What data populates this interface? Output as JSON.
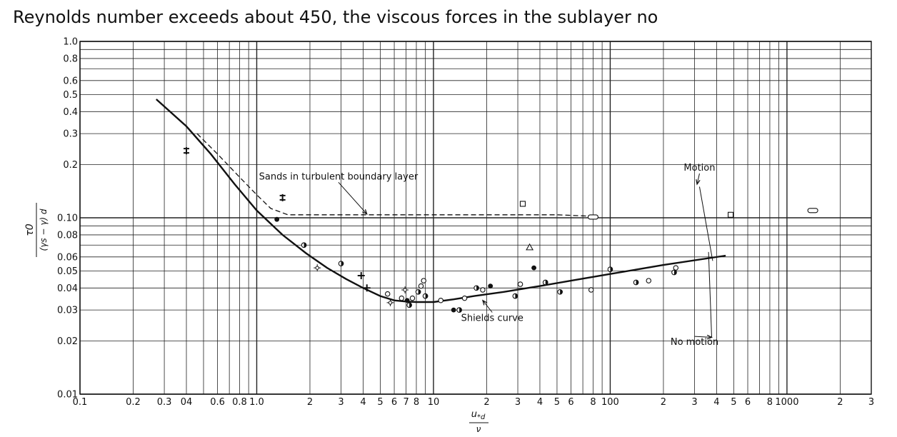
{
  "caption": "Reynolds number exceeds about 450, the viscous forces in the sublayer no",
  "chart_data": {
    "type": "line",
    "x_scale": "log",
    "y_scale": "log",
    "xlim": [
      0.1,
      3000
    ],
    "ylim": [
      0.01,
      1.0
    ],
    "grid": true,
    "x_tick_labels": [
      {
        "v": 0.1,
        "t": "0.1"
      },
      {
        "v": 0.2,
        "t": "0.2"
      },
      {
        "v": 0.3,
        "t": "0.3"
      },
      {
        "v": 0.4,
        "t": "04"
      },
      {
        "v": 0.6,
        "t": "0.6"
      },
      {
        "v": 0.8,
        "t": "0.8"
      },
      {
        "v": 1.0,
        "t": "1.0"
      },
      {
        "v": 2,
        "t": "2"
      },
      {
        "v": 3,
        "t": "3"
      },
      {
        "v": 4,
        "t": "4"
      },
      {
        "v": 5,
        "t": "5"
      },
      {
        "v": 6,
        "t": "6"
      },
      {
        "v": 7,
        "t": "7"
      },
      {
        "v": 8,
        "t": "8"
      },
      {
        "v": 10,
        "t": "10"
      },
      {
        "v": 20,
        "t": "2"
      },
      {
        "v": 30,
        "t": "3"
      },
      {
        "v": 40,
        "t": "4"
      },
      {
        "v": 50,
        "t": "5"
      },
      {
        "v": 60,
        "t": "6"
      },
      {
        "v": 80,
        "t": "8"
      },
      {
        "v": 100,
        "t": "100"
      },
      {
        "v": 200,
        "t": "2"
      },
      {
        "v": 300,
        "t": "3"
      },
      {
        "v": 400,
        "t": "4"
      },
      {
        "v": 500,
        "t": "5"
      },
      {
        "v": 600,
        "t": "6"
      },
      {
        "v": 800,
        "t": "8"
      },
      {
        "v": 1000,
        "t": "1000"
      },
      {
        "v": 2000,
        "t": "2"
      },
      {
        "v": 3000,
        "t": "3"
      }
    ],
    "y_tick_labels": [
      {
        "v": 1.0,
        "t": "1.0"
      },
      {
        "v": 0.8,
        "t": "0.8"
      },
      {
        "v": 0.6,
        "t": "0.6"
      },
      {
        "v": 0.5,
        "t": "0.5"
      },
      {
        "v": 0.4,
        "t": "0.4"
      },
      {
        "v": 0.3,
        "t": "0.3"
      },
      {
        "v": 0.2,
        "t": "0.2"
      },
      {
        "v": 0.1,
        "t": "0.10"
      },
      {
        "v": 0.08,
        "t": "0.08"
      },
      {
        "v": 0.06,
        "t": "0.06"
      },
      {
        "v": 0.05,
        "t": "0.05"
      },
      {
        "v": 0.04,
        "t": "0.04"
      },
      {
        "v": 0.03,
        "t": "0.03"
      },
      {
        "v": 0.02,
        "t": "0.02"
      },
      {
        "v": 0.01,
        "t": "0.01"
      }
    ],
    "xlabel": "u*d / ν",
    "ylabel": "τ0 / (γs − γ) d",
    "series": [
      {
        "name": "Shields curve",
        "style": "solid",
        "x": [
          0.27,
          0.4,
          0.55,
          0.75,
          1.0,
          1.4,
          1.9,
          2.5,
          3.2,
          4.0,
          5.0,
          6.0,
          7.0,
          8.0,
          10,
          13,
          17,
          25,
          40,
          60,
          100,
          200,
          450
        ],
        "y": [
          0.47,
          0.33,
          0.23,
          0.155,
          0.11,
          0.08,
          0.063,
          0.052,
          0.045,
          0.04,
          0.036,
          0.034,
          0.0335,
          0.0333,
          0.0333,
          0.0345,
          0.036,
          0.038,
          0.041,
          0.044,
          0.048,
          0.054,
          0.061
        ]
      },
      {
        "name": "Sands in turbulent boundary layer",
        "style": "dashed",
        "x": [
          0.46,
          0.6,
          0.8,
          1.0,
          1.2,
          1.5,
          2.0,
          3.0,
          5.0,
          10,
          20,
          50,
          80
        ],
        "y": [
          0.3,
          0.23,
          0.17,
          0.135,
          0.113,
          0.104,
          0.104,
          0.104,
          0.104,
          0.104,
          0.104,
          0.104,
          0.102
        ]
      }
    ],
    "points": [
      {
        "x": 0.4,
        "y": 0.24,
        "m": "bar"
      },
      {
        "x": 1.4,
        "y": 0.13,
        "m": "bar"
      },
      {
        "x": 1.3,
        "y": 0.098,
        "m": "filled"
      },
      {
        "x": 1.85,
        "y": 0.07,
        "m": "half"
      },
      {
        "x": 2.2,
        "y": 0.052,
        "m": "star"
      },
      {
        "x": 3.0,
        "y": 0.055,
        "m": "half"
      },
      {
        "x": 3.9,
        "y": 0.047,
        "m": "plus"
      },
      {
        "x": 4.2,
        "y": 0.04,
        "m": "plus"
      },
      {
        "x": 5.5,
        "y": 0.037,
        "m": "open"
      },
      {
        "x": 5.7,
        "y": 0.033,
        "m": "star"
      },
      {
        "x": 6.6,
        "y": 0.035,
        "m": "open"
      },
      {
        "x": 6.9,
        "y": 0.039,
        "m": "star"
      },
      {
        "x": 7.1,
        "y": 0.034,
        "m": "filled"
      },
      {
        "x": 7.3,
        "y": 0.032,
        "m": "half"
      },
      {
        "x": 7.6,
        "y": 0.035,
        "m": "open"
      },
      {
        "x": 8.2,
        "y": 0.038,
        "m": "half"
      },
      {
        "x": 8.5,
        "y": 0.041,
        "m": "open"
      },
      {
        "x": 8.8,
        "y": 0.044,
        "m": "open"
      },
      {
        "x": 9.0,
        "y": 0.036,
        "m": "half"
      },
      {
        "x": 11,
        "y": 0.034,
        "m": "open"
      },
      {
        "x": 13,
        "y": 0.03,
        "m": "filled"
      },
      {
        "x": 14,
        "y": 0.03,
        "m": "half"
      },
      {
        "x": 15,
        "y": 0.035,
        "m": "open"
      },
      {
        "x": 17.5,
        "y": 0.04,
        "m": "half"
      },
      {
        "x": 19,
        "y": 0.039,
        "m": "open"
      },
      {
        "x": 21,
        "y": 0.041,
        "m": "filled"
      },
      {
        "x": 29,
        "y": 0.036,
        "m": "half"
      },
      {
        "x": 31,
        "y": 0.042,
        "m": "open"
      },
      {
        "x": 37,
        "y": 0.052,
        "m": "filled"
      },
      {
        "x": 43,
        "y": 0.043,
        "m": "half"
      },
      {
        "x": 52,
        "y": 0.038,
        "m": "half"
      },
      {
        "x": 78,
        "y": 0.039,
        "m": "open"
      },
      {
        "x": 100,
        "y": 0.051,
        "m": "half"
      },
      {
        "x": 140,
        "y": 0.043,
        "m": "half"
      },
      {
        "x": 165,
        "y": 0.044,
        "m": "open"
      },
      {
        "x": 230,
        "y": 0.049,
        "m": "half"
      },
      {
        "x": 235,
        "y": 0.052,
        "m": "open"
      },
      {
        "x": 32,
        "y": 0.12,
        "m": "square"
      },
      {
        "x": 35,
        "y": 0.068,
        "m": "triangle"
      },
      {
        "x": 80,
        "y": 0.101,
        "m": "oval"
      },
      {
        "x": 480,
        "y": 0.104,
        "m": "square"
      },
      {
        "x": 1400,
        "y": 0.11,
        "m": "oval"
      }
    ],
    "annotations": [
      {
        "text": "Sands in turbulent boundary layer",
        "x": 2.9,
        "y": 0.165,
        "ax": 4.2,
        "ay": 0.105
      },
      {
        "text": "Motion",
        "x": 320,
        "y": 0.185,
        "ax": 310,
        "ay": 0.155
      },
      {
        "text": "Shields curve",
        "x": 21.5,
        "y": 0.026,
        "ax": 19,
        "ay": 0.034
      },
      {
        "text": "No motion",
        "x": 300,
        "y": 0.019,
        "ax": 375,
        "ay": 0.021
      }
    ]
  }
}
